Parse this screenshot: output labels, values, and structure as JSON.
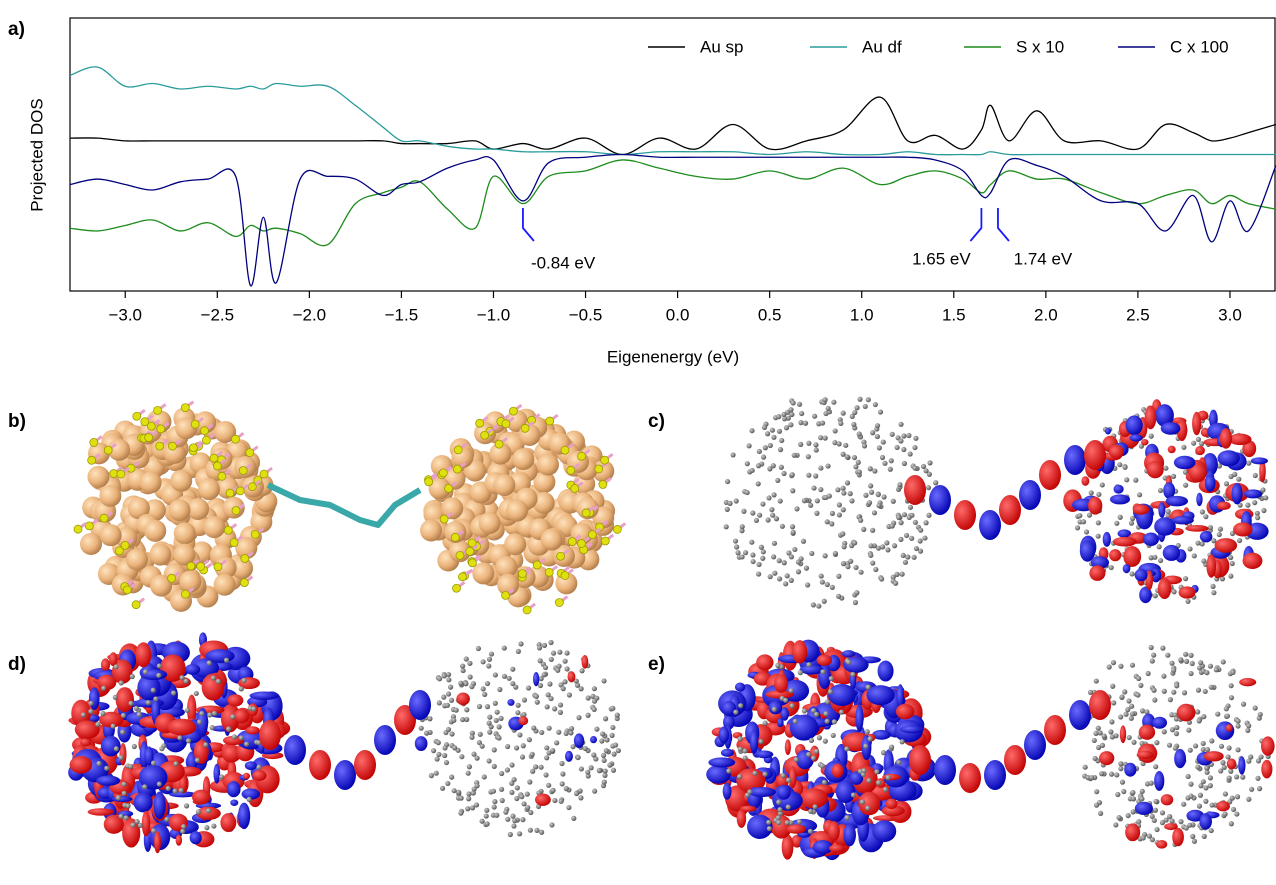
{
  "chart_data": {
    "type": "line",
    "panel_label": "a)",
    "ylabel": "Projected DOS",
    "xlabel": "Eigenenergy (eV)",
    "xlim": [
      -3.3,
      3.25
    ],
    "ylim": [
      0,
      10
    ],
    "xticks": [
      {
        "value": -3.0,
        "label": "−3.0"
      },
      {
        "value": -2.5,
        "label": "−2.5"
      },
      {
        "value": -2.0,
        "label": "−2.0"
      },
      {
        "value": -1.5,
        "label": "−1.5"
      },
      {
        "value": -1.0,
        "label": "−1.0"
      },
      {
        "value": -0.5,
        "label": "−0.5"
      },
      {
        "value": 0,
        "label": "0.0"
      },
      0.5,
      {
        "value": 1.0,
        "label": "1.0"
      },
      1.5,
      {
        "value": 2.0,
        "label": "2.0"
      },
      2.5,
      {
        "value": 3.0,
        "label": "3.0"
      }
    ],
    "legend": "top-right",
    "x": [
      -3.3,
      -3.15,
      -3.0,
      -2.85,
      -2.7,
      -2.55,
      -2.4,
      -2.32,
      -2.25,
      -2.18,
      -2.05,
      -1.9,
      -1.75,
      -1.6,
      -1.5,
      -1.4,
      -1.25,
      -1.1,
      -1.0,
      -0.84,
      -0.7,
      -0.5,
      -0.3,
      -0.1,
      0.1,
      0.3,
      0.5,
      0.7,
      0.9,
      1.1,
      1.25,
      1.4,
      1.55,
      1.65,
      1.7,
      1.8,
      1.95,
      2.1,
      2.3,
      2.5,
      2.65,
      2.8,
      2.9,
      3.0,
      3.1,
      3.25
    ],
    "series": [
      {
        "name": "Au sp",
        "color": "#000000",
        "values": [
          5.6,
          5.6,
          5.5,
          5.5,
          5.5,
          5.5,
          5.5,
          5.5,
          5.5,
          5.5,
          5.5,
          5.5,
          5.5,
          5.5,
          5.4,
          5.4,
          5.4,
          5.5,
          5.2,
          5.4,
          5.2,
          5.6,
          5.0,
          5.6,
          5.2,
          6.1,
          5.2,
          5.5,
          5.9,
          7.1,
          5.5,
          5.7,
          5.2,
          5.9,
          6.8,
          5.5,
          6.6,
          5.5,
          5.5,
          5.2,
          6.1,
          5.8,
          5.5,
          5.6,
          5.8,
          6.1
        ]
      },
      {
        "name": "Au df",
        "color": "#2a9b9b",
        "values": [
          7.9,
          8.2,
          7.5,
          7.6,
          7.4,
          7.5,
          7.4,
          7.5,
          7.4,
          7.6,
          7.5,
          7.5,
          6.8,
          6.0,
          5.5,
          5.5,
          5.3,
          5.2,
          5.2,
          5.1,
          5.1,
          5.1,
          5.0,
          5.1,
          5.1,
          5.1,
          5.0,
          5.1,
          5.0,
          5.0,
          5.1,
          5.0,
          5.0,
          5.0,
          5.1,
          5.0,
          5.0,
          5.0,
          5.0,
          5.0,
          5.0,
          5.0,
          5.0,
          5.0,
          5.0,
          5.0
        ]
      },
      {
        "name": "S x 10",
        "color": "#1c8c1c",
        "values": [
          2.3,
          2.2,
          2.4,
          2.6,
          2.2,
          2.5,
          2.0,
          2.4,
          2.2,
          2.3,
          2.1,
          1.7,
          3.2,
          3.6,
          3.8,
          4.0,
          3.0,
          2.3,
          4.2,
          3.2,
          4.2,
          4.4,
          4.8,
          4.5,
          4.2,
          4.1,
          4.4,
          4.1,
          4.5,
          3.9,
          4.2,
          4.4,
          4.1,
          3.6,
          3.9,
          4.4,
          4.1,
          4.1,
          3.6,
          3.2,
          3.5,
          3.7,
          3.2,
          3.5,
          3.2,
          3.0
        ]
      },
      {
        "name": "C x 100",
        "color": "#00007f",
        "values": [
          3.9,
          4.1,
          3.9,
          3.7,
          4.0,
          4.1,
          4.2,
          0.2,
          2.7,
          0.3,
          4.1,
          4.2,
          4.1,
          3.5,
          3.9,
          4.0,
          4.5,
          4.8,
          4.8,
          3.3,
          4.7,
          4.9,
          5.0,
          4.9,
          4.9,
          4.9,
          4.9,
          4.9,
          4.9,
          4.9,
          4.9,
          4.8,
          4.4,
          3.5,
          3.6,
          4.8,
          4.6,
          4.2,
          3.3,
          3.2,
          2.2,
          3.5,
          1.8,
          3.3,
          2.2,
          4.6
        ]
      }
    ],
    "annotations": [
      {
        "text": "-0.84 eV",
        "x": -0.84
      },
      {
        "text": "1.65 eV",
        "x": 1.65
      },
      {
        "text": "1.74 eV",
        "x": 1.74
      }
    ],
    "annotation_color": "#1a1aff"
  },
  "panel_labels": [
    "b)",
    "c)",
    "d)",
    "e)"
  ]
}
